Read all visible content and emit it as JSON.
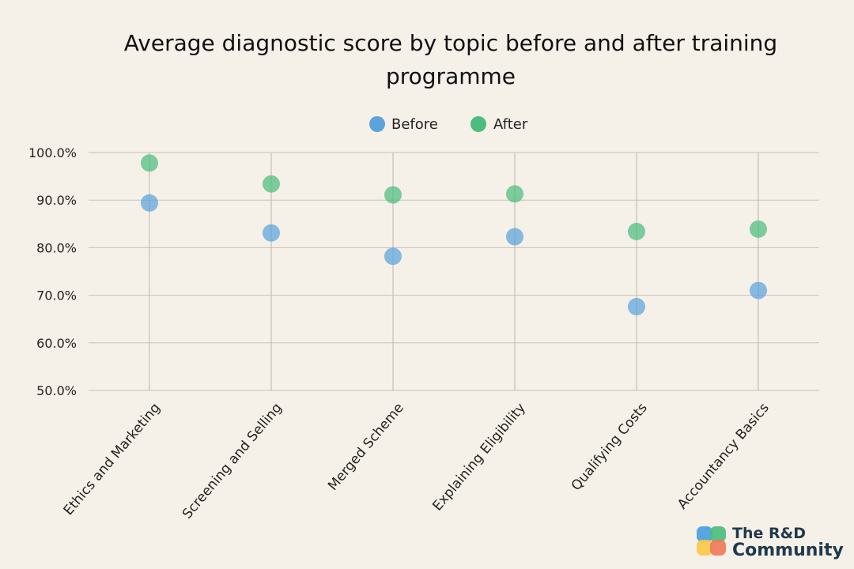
{
  "chart_data": {
    "type": "scatter",
    "title_lines": [
      "Average diagnostic score by topic before and after training",
      "programme"
    ],
    "categories": [
      "Ethics and Marketing",
      "Screening and Selling",
      "Merged Scheme",
      "Explaining Eligibility",
      "Qualifying Costs",
      "Accountancy Basics"
    ],
    "series": [
      {
        "name": "Before",
        "color": "#5aa3dc",
        "values": [
          89.4,
          83.1,
          78.2,
          82.3,
          67.6,
          71.0
        ]
      },
      {
        "name": "After",
        "color": "#4cbd7e",
        "values": [
          97.8,
          93.4,
          91.1,
          91.3,
          83.4,
          83.9
        ]
      }
    ],
    "ylim": [
      50,
      100
    ],
    "yticks": [
      "50.0%",
      "60.0%",
      "70.0%",
      "80.0%",
      "90.0%",
      "100.0%"
    ],
    "grid": true,
    "legend_position": "top-center"
  },
  "logo": {
    "line1": "The R&D",
    "line2": "Community",
    "colors": [
      "#4a9fe0",
      "#4cbd7e",
      "#f7c94a",
      "#f07a5a"
    ]
  }
}
